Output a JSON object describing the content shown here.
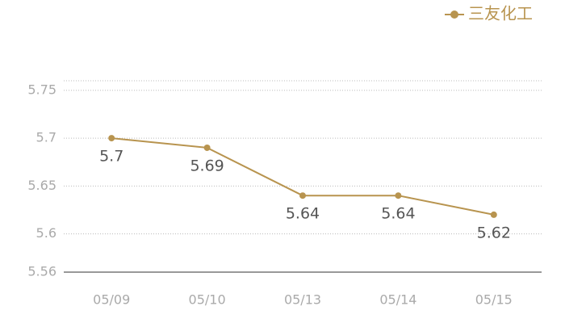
{
  "chart_data": {
    "type": "line",
    "categories": [
      "05/09",
      "05/10",
      "05/13",
      "05/14",
      "05/15"
    ],
    "series": [
      {
        "name": "三友化工",
        "color": "#b8944f",
        "values": [
          5.7,
          5.69,
          5.64,
          5.64,
          5.62
        ]
      }
    ],
    "ylim": [
      5.56,
      5.76
    ],
    "yticks": [
      5.56,
      5.6,
      5.65,
      5.7,
      5.75
    ],
    "grid": true,
    "legend": "top-right"
  }
}
